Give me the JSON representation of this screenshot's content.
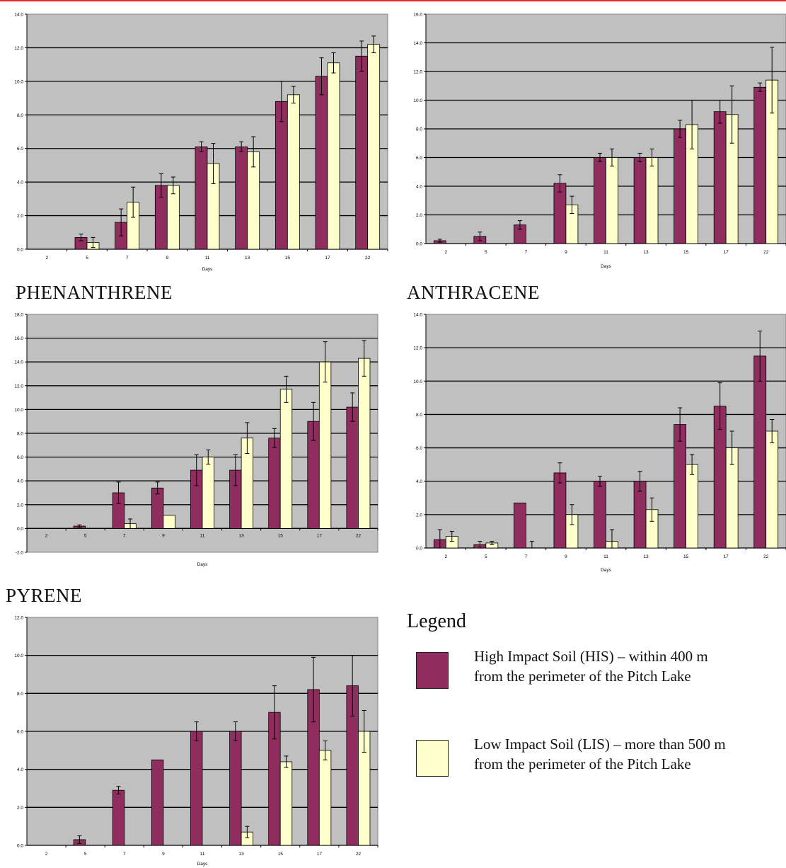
{
  "colors": {
    "his": "#8f2d5e",
    "lis": "#ffffcc",
    "plot_bg": "#c0c0c0",
    "grid": "#000000",
    "topline": "#e8262b"
  },
  "chart_data": [
    {
      "type": "bar",
      "title": "",
      "xlabel": "Days",
      "ylabel": "",
      "categories": [
        "2",
        "5",
        "7",
        "9",
        "11",
        "13",
        "15",
        "17",
        "22"
      ],
      "ylim": [
        0,
        14
      ],
      "yticks": [
        "0.0",
        "2.0",
        "4.0",
        "6.0",
        "8.0",
        "10.0",
        "12.0",
        "14.0"
      ],
      "ystep": 2,
      "grid": true,
      "series": [
        {
          "color": "his",
          "values": [
            0,
            0.7,
            1.6,
            3.8,
            6.1,
            6.1,
            8.8,
            10.3,
            11.5
          ],
          "errors": [
            0,
            0.2,
            0.8,
            0.7,
            0.3,
            0.3,
            1.2,
            1.1,
            0.9
          ]
        },
        {
          "color": "lis",
          "values": [
            0,
            0.4,
            2.8,
            3.8,
            5.1,
            5.8,
            9.2,
            11.1,
            12.2
          ],
          "errors": [
            0,
            0.3,
            0.9,
            0.5,
            1.2,
            0.9,
            0.5,
            0.6,
            0.5
          ]
        }
      ]
    },
    {
      "type": "bar",
      "title": "",
      "xlabel": "Days",
      "ylabel": "",
      "categories": [
        "2",
        "5",
        "7",
        "9",
        "11",
        "13",
        "15",
        "17",
        "22"
      ],
      "ylim": [
        0,
        16
      ],
      "yticks": [
        "0.0",
        "2.0",
        "4.0",
        "6.0",
        "8.0",
        "10.0",
        "12.0",
        "14.0",
        "16.0"
      ],
      "ystep": 2,
      "grid": true,
      "series": [
        {
          "color": "his",
          "values": [
            0.2,
            0.5,
            1.3,
            4.2,
            6.0,
            6.0,
            8.0,
            9.2,
            10.9
          ],
          "errors": [
            0.1,
            0.3,
            0.3,
            0.6,
            0.3,
            0.3,
            0.6,
            0.8,
            0.3
          ]
        },
        {
          "color": "lis",
          "values": [
            0,
            0,
            0,
            2.7,
            6.0,
            6.0,
            8.3,
            9.0,
            11.4
          ],
          "errors": [
            0,
            0,
            0,
            0.6,
            0.6,
            0.6,
            1.7,
            2.0,
            2.3
          ]
        }
      ]
    },
    {
      "type": "bar",
      "title": "PHENANTHRENE",
      "xlabel": "Days",
      "ylabel": "",
      "categories": [
        "2",
        "5",
        "7",
        "9",
        "11",
        "13",
        "15",
        "17",
        "22"
      ],
      "ylim": [
        -2,
        18
      ],
      "yticks": [
        "-2.0",
        "0.0",
        "2.0",
        "4.0",
        "6.0",
        "8.0",
        "10.0",
        "12.0",
        "14.0",
        "16.0",
        "18.0"
      ],
      "ystep": 2,
      "grid": true,
      "series": [
        {
          "color": "his",
          "values": [
            0,
            0.2,
            3.0,
            3.4,
            4.9,
            4.9,
            7.6,
            9.0,
            10.2
          ],
          "errors": [
            0,
            0.1,
            0.9,
            0.5,
            1.3,
            1.3,
            0.8,
            1.6,
            1.2
          ]
        },
        {
          "color": "lis",
          "values": [
            0,
            0,
            0.4,
            1.1,
            6.0,
            7.6,
            11.7,
            14.0,
            14.3
          ],
          "errors": [
            0,
            0,
            0.4,
            0,
            0.6,
            1.3,
            1.1,
            1.7,
            1.5
          ]
        }
      ]
    },
    {
      "type": "bar",
      "title": "ANTHRACENE",
      "xlabel": "Days",
      "ylabel": "",
      "categories": [
        "2",
        "5",
        "7",
        "9",
        "11",
        "13",
        "15",
        "17",
        "22"
      ],
      "ylim": [
        0,
        14
      ],
      "yticks": [
        "0.0",
        "2.0",
        "4.0",
        "6.0",
        "8.0",
        "10.0",
        "12.0",
        "14.0"
      ],
      "ystep": 2,
      "grid": true,
      "series": [
        {
          "color": "his",
          "values": [
            0.5,
            0.2,
            2.7,
            4.5,
            4.0,
            4.0,
            7.4,
            8.5,
            11.5
          ],
          "errors": [
            0.6,
            0.2,
            0,
            0.6,
            0.3,
            0.6,
            1.0,
            1.4,
            1.5
          ]
        },
        {
          "color": "lis",
          "values": [
            0.7,
            0.3,
            0,
            2.0,
            0.4,
            2.3,
            5.0,
            6.0,
            7.0
          ],
          "errors": [
            0.3,
            0.1,
            0.4,
            0.6,
            0.7,
            0.7,
            0.6,
            1.0,
            0.7
          ]
        }
      ]
    },
    {
      "type": "bar",
      "title": "PYRENE",
      "xlabel": "Days",
      "ylabel": "",
      "categories": [
        "2",
        "5",
        "7",
        "9",
        "11",
        "13",
        "15",
        "17",
        "22"
      ],
      "ylim": [
        0,
        12
      ],
      "yticks": [
        "0.0",
        "2.0",
        "4.0",
        "6.0",
        "8.0",
        "10.0",
        "12.0"
      ],
      "ystep": 2,
      "grid": true,
      "series": [
        {
          "color": "his",
          "values": [
            0,
            0.3,
            2.9,
            4.5,
            6.0,
            6.0,
            7.0,
            8.2,
            8.4
          ],
          "errors": [
            0,
            0.2,
            0.2,
            0,
            0.5,
            0.5,
            1.4,
            1.7,
            1.6
          ]
        },
        {
          "color": "lis",
          "values": [
            0,
            0,
            0,
            0,
            0,
            0.7,
            4.4,
            5.0,
            6.0
          ],
          "errors": [
            0,
            0,
            0,
            0,
            0,
            0.3,
            0.3,
            0.5,
            1.1
          ]
        }
      ]
    }
  ],
  "legend": {
    "title": "Legend",
    "items": [
      {
        "color": "his",
        "line1": "High Impact Soil (HIS) – within 400 m",
        "line2": "from the perimeter of the Pitch Lake"
      },
      {
        "color": "lis",
        "line1": "Low Impact Soil (LIS) – more than 500 m",
        "line2": "from the perimeter of the Pitch Lake"
      }
    ]
  }
}
